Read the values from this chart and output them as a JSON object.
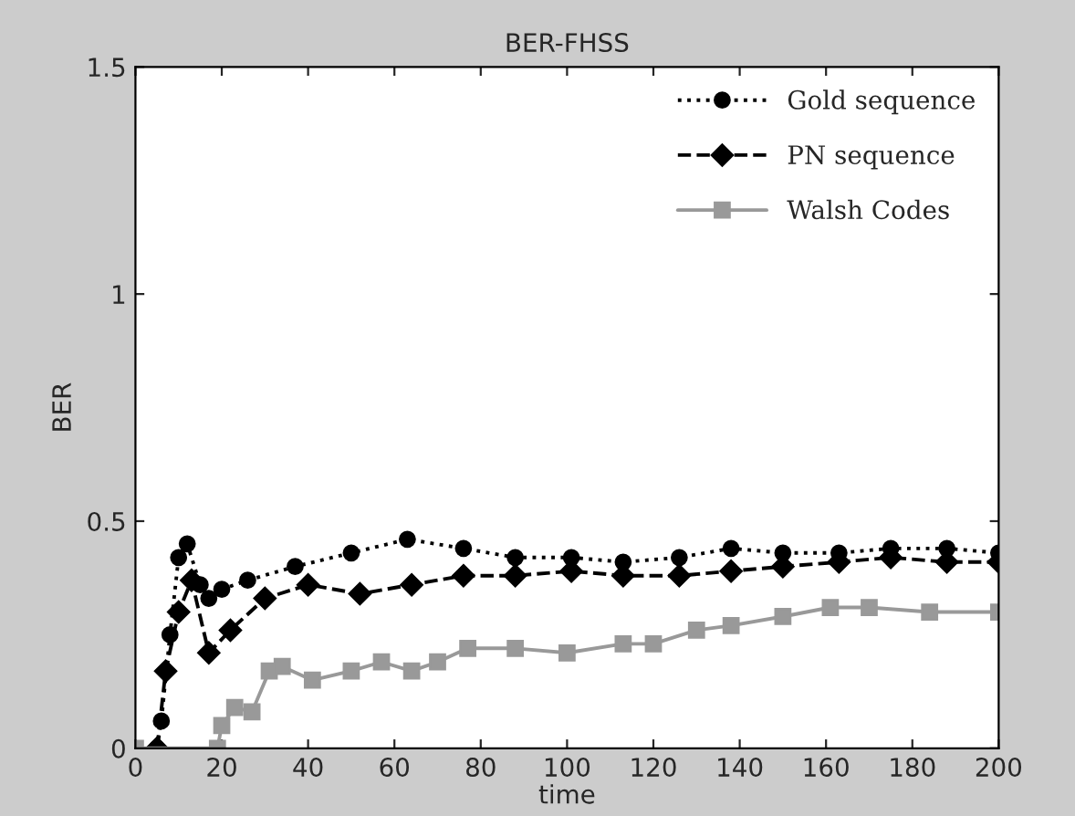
{
  "chart_data": {
    "type": "line",
    "title": "BER-FHSS",
    "xlabel": "time",
    "ylabel": "BER",
    "xlim": [
      0,
      200
    ],
    "ylim": [
      0,
      1.5
    ],
    "xticks": [
      0,
      20,
      40,
      60,
      80,
      100,
      120,
      140,
      160,
      180,
      200
    ],
    "yticks": [
      0,
      0.5,
      1,
      1.5
    ],
    "grid": false,
    "legend": "top right",
    "series": [
      {
        "name": "Gold sequence",
        "color": "#000000",
        "marker": "circle",
        "line_style": "dotted",
        "x": [
          5,
          6,
          8,
          10,
          12,
          15,
          17,
          20,
          26,
          37,
          50,
          63,
          76,
          88,
          101,
          113,
          126,
          138,
          150,
          163,
          175,
          188,
          200
        ],
        "values": [
          0,
          0.06,
          0.25,
          0.42,
          0.45,
          0.36,
          0.33,
          0.35,
          0.37,
          0.4,
          0.43,
          0.46,
          0.44,
          0.42,
          0.42,
          0.41,
          0.42,
          0.44,
          0.43,
          0.43,
          0.44,
          0.44,
          0.43
        ]
      },
      {
        "name": "PN sequence",
        "color": "#000000",
        "marker": "diamond",
        "line_style": "dashed",
        "x": [
          5,
          7,
          10,
          13,
          17,
          22,
          30,
          40,
          52,
          64,
          76,
          88,
          101,
          113,
          126,
          138,
          150,
          163,
          175,
          188,
          200
        ],
        "values": [
          0,
          0.17,
          0.3,
          0.37,
          0.21,
          0.26,
          0.33,
          0.36,
          0.34,
          0.36,
          0.38,
          0.38,
          0.39,
          0.38,
          0.38,
          0.39,
          0.4,
          0.41,
          0.42,
          0.41,
          0.41
        ]
      },
      {
        "name": "Walsh Codes",
        "color": "#999999",
        "marker": "square",
        "line_style": "solid",
        "x": [
          0,
          19,
          20,
          23,
          27,
          31,
          34,
          41,
          50,
          57,
          64,
          70,
          77,
          88,
          100,
          113,
          120,
          130,
          138,
          150,
          161,
          170,
          184,
          200
        ],
        "values": [
          0,
          0,
          0.05,
          0.09,
          0.08,
          0.17,
          0.18,
          0.15,
          0.17,
          0.19,
          0.17,
          0.19,
          0.22,
          0.22,
          0.21,
          0.23,
          0.23,
          0.26,
          0.27,
          0.29,
          0.31,
          0.31,
          0.3,
          0.3
        ]
      }
    ]
  }
}
